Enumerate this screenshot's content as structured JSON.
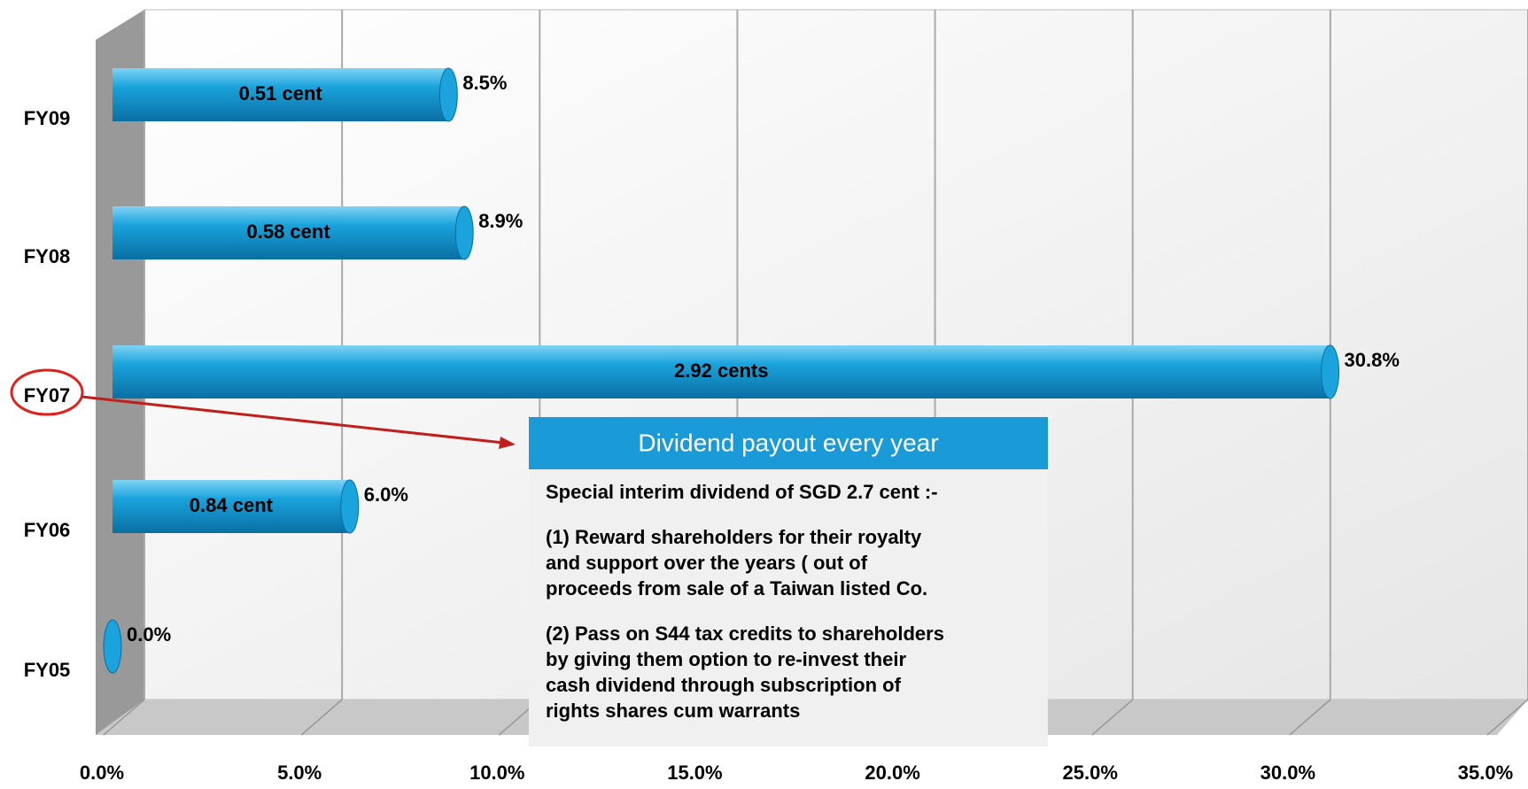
{
  "chart_data": {
    "type": "bar",
    "orientation": "horizontal",
    "categories": [
      "FY09",
      "FY08",
      "FY07",
      "FY06",
      "FY05"
    ],
    "values": [
      8.5,
      8.9,
      30.8,
      6.0,
      0.0
    ],
    "value_labels": [
      "8.5%",
      "8.9%",
      "30.8%",
      "6.0%",
      "0.0%"
    ],
    "bar_labels": [
      "0.51 cent",
      "0.58 cent",
      "2.92 cents",
      "0.84 cent",
      null
    ],
    "color": "#1aa3dc",
    "xlim": [
      0,
      35
    ],
    "xticks": [
      {
        "value": 0,
        "label": "0.0%"
      },
      {
        "value": 5,
        "label": "5.0%"
      },
      {
        "value": 10,
        "label": "10.0%"
      },
      {
        "value": 15,
        "label": "15.0%"
      },
      {
        "value": 20,
        "label": "20.0%"
      },
      {
        "value": 25,
        "label": "25.0%"
      },
      {
        "value": 30,
        "label": "30.0%"
      },
      {
        "value": 35,
        "label": "35.0%"
      }
    ],
    "grid": true,
    "annotation": {
      "title": "Dividend payout every year",
      "paragraphs": [
        [
          "Special interim dividend of SGD 2.7 cent :-"
        ],
        [
          "(1) Reward shareholders for their royalty",
          "and support  over the years ( out of",
          "proceeds from sale of a Taiwan listed Co."
        ],
        [
          "(2) Pass on S44 tax credits to shareholders",
          "by giving them option to re-invest their",
          "cash dividend through subscription of",
          "rights shares cum warrants"
        ]
      ]
    }
  }
}
